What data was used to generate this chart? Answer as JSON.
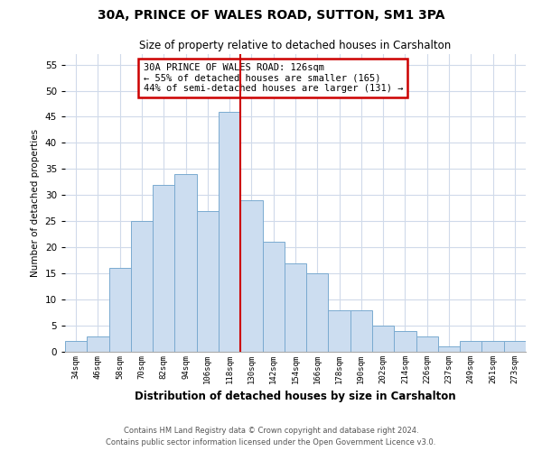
{
  "title": "30A, PRINCE OF WALES ROAD, SUTTON, SM1 3PA",
  "subtitle": "Size of property relative to detached houses in Carshalton",
  "xlabel": "Distribution of detached houses by size in Carshalton",
  "ylabel": "Number of detached properties",
  "bar_labels": [
    "34sqm",
    "46sqm",
    "58sqm",
    "70sqm",
    "82sqm",
    "94sqm",
    "106sqm",
    "118sqm",
    "130sqm",
    "142sqm",
    "154sqm",
    "166sqm",
    "178sqm",
    "190sqm",
    "202sqm",
    "214sqm",
    "226sqm",
    "237sqm",
    "249sqm",
    "261sqm",
    "273sqm"
  ],
  "bar_values": [
    2,
    3,
    16,
    25,
    32,
    34,
    27,
    46,
    29,
    21,
    17,
    15,
    8,
    8,
    5,
    4,
    3,
    1,
    2,
    2,
    2
  ],
  "bar_color": "#ccddf0",
  "bar_edge_color": "#7aaad0",
  "vline_x": 7.5,
  "vline_color": "#cc0000",
  "ylim": [
    0,
    57
  ],
  "yticks": [
    0,
    5,
    10,
    15,
    20,
    25,
    30,
    35,
    40,
    45,
    50,
    55
  ],
  "annotation_title": "30A PRINCE OF WALES ROAD: 126sqm",
  "annotation_line1": "← 55% of detached houses are smaller (165)",
  "annotation_line2": "44% of semi-detached houses are larger (131) →",
  "annotation_box_color": "#ffffff",
  "annotation_box_edge": "#cc0000",
  "footer1": "Contains HM Land Registry data © Crown copyright and database right 2024.",
  "footer2": "Contains public sector information licensed under the Open Government Licence v3.0.",
  "bg_color": "#ffffff",
  "grid_color": "#d0daea"
}
